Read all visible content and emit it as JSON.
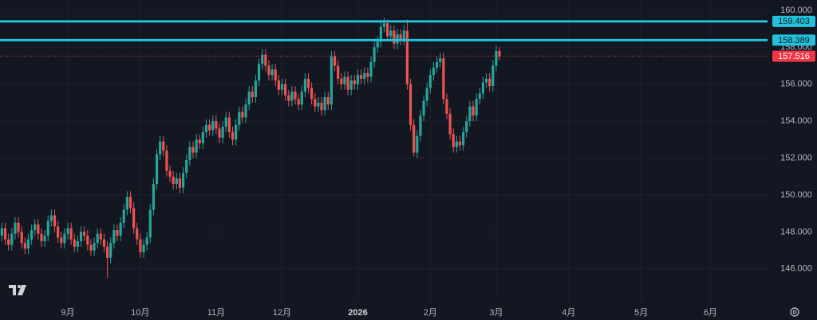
{
  "chart_data": {
    "type": "candlestick",
    "up_color": "#26a69a",
    "down_color": "#ef5350",
    "grid": true,
    "ylim": [
      144.18,
      160.56
    ],
    "yticks": [
      {
        "value": 146,
        "label": "146.000"
      },
      {
        "value": 148,
        "label": "148.000"
      },
      {
        "value": 150,
        "label": "150.000"
      },
      {
        "value": 152,
        "label": "152.000"
      },
      {
        "value": 154,
        "label": "154.000"
      },
      {
        "value": 156,
        "label": "156.000"
      },
      {
        "value": 158,
        "label": "158.000"
      },
      {
        "value": 160,
        "label": "160.000"
      }
    ],
    "levels": [
      {
        "value": 159.403,
        "color": "#22c3da"
      },
      {
        "value": 158.389,
        "color": "#22c3da"
      }
    ],
    "last_price_color": "#f23645",
    "categories": [
      null,
      null,
      null,
      null,
      null,
      null,
      null,
      null,
      null,
      null,
      null,
      null,
      null,
      null,
      null,
      null,
      null,
      null,
      null,
      null,
      null,
      "9月",
      null,
      null,
      null,
      null,
      null,
      null,
      null,
      null,
      null,
      null,
      null,
      null,
      null,
      null,
      null,
      null,
      null,
      null,
      null,
      null,
      null,
      "10月",
      null,
      null,
      null,
      null,
      null,
      null,
      null,
      null,
      null,
      null,
      null,
      null,
      null,
      null,
      null,
      null,
      null,
      null,
      null,
      null,
      null,
      null,
      "11月",
      null,
      null,
      null,
      null,
      null,
      null,
      null,
      null,
      null,
      null,
      null,
      null,
      null,
      null,
      null,
      null,
      null,
      null,
      null,
      "12月",
      null,
      null,
      null,
      null,
      null,
      null,
      null,
      null,
      null,
      null,
      null,
      null,
      null,
      null,
      null,
      null,
      null,
      null,
      null,
      null,
      null,
      null,
      "2026",
      null,
      null,
      null,
      null,
      null,
      null,
      null,
      null,
      null,
      null,
      null,
      null,
      null,
      null,
      null,
      null,
      null,
      null,
      null,
      null,
      null,
      "2月",
      null,
      null,
      null,
      null,
      null,
      null,
      null,
      null,
      null,
      null,
      null,
      null,
      null,
      null,
      null,
      null,
      null,
      null,
      null,
      "3月",
      null,
      null,
      null,
      null,
      null,
      null,
      null,
      null,
      null,
      null,
      null,
      null,
      null,
      null,
      null,
      null,
      null,
      null,
      null,
      null,
      null,
      "4月",
      null,
      null,
      null,
      null,
      null,
      null,
      null,
      null,
      null,
      null,
      null,
      null,
      null,
      null,
      null,
      null,
      null,
      null,
      null,
      null,
      null,
      "5月",
      null,
      null,
      null,
      null,
      null,
      null,
      null,
      null,
      null,
      null,
      null,
      null,
      null,
      null,
      null,
      null,
      null,
      null,
      null,
      null,
      "6月",
      null,
      null,
      null,
      null,
      null,
      null,
      null,
      null,
      null,
      null,
      null,
      null,
      null,
      null,
      null,
      null,
      null,
      null,
      null,
      null,
      null
    ],
    "values": [
      [
        147.5,
        148.1,
        147.2,
        147.8
      ],
      [
        147.8,
        148.5,
        147.5,
        148.2
      ],
      [
        148.2,
        148.5,
        147.3,
        147.6
      ],
      [
        147.6,
        147.9,
        147.0,
        147.3
      ],
      [
        147.3,
        148.2,
        147.0,
        147.9
      ],
      [
        147.9,
        148.8,
        147.6,
        148.5
      ],
      [
        148.5,
        148.8,
        147.7,
        148.0
      ],
      [
        148.0,
        148.3,
        147.1,
        147.4
      ],
      [
        147.4,
        147.7,
        146.8,
        147.1
      ],
      [
        147.1,
        147.9,
        146.8,
        147.6
      ],
      [
        147.6,
        148.4,
        147.3,
        148.1
      ],
      [
        148.1,
        148.7,
        147.8,
        148.4
      ],
      [
        148.4,
        148.7,
        147.6,
        147.9
      ],
      [
        147.9,
        148.2,
        147.2,
        147.5
      ],
      [
        147.5,
        148.1,
        147.2,
        147.8
      ],
      [
        147.8,
        148.9,
        147.5,
        148.6
      ],
      [
        148.6,
        149.2,
        148.3,
        148.9
      ],
      [
        148.9,
        149.2,
        148.0,
        148.3
      ],
      [
        148.3,
        148.6,
        147.4,
        147.7
      ],
      [
        147.7,
        148.0,
        147.1,
        147.4
      ],
      [
        147.4,
        148.2,
        147.1,
        147.9
      ],
      [
        147.9,
        148.5,
        147.6,
        148.2
      ],
      [
        148.2,
        148.5,
        147.3,
        147.6
      ],
      [
        147.6,
        147.9,
        146.9,
        147.2
      ],
      [
        147.2,
        147.8,
        146.9,
        147.5
      ],
      [
        147.5,
        148.3,
        147.2,
        148.0
      ],
      [
        148.0,
        148.3,
        147.5,
        147.8
      ],
      [
        147.8,
        148.1,
        147.0,
        147.3
      ],
      [
        147.3,
        147.6,
        146.7,
        147.0
      ],
      [
        147.0,
        147.7,
        146.7,
        147.4
      ],
      [
        147.4,
        148.2,
        147.1,
        147.9
      ],
      [
        147.9,
        148.2,
        147.3,
        147.6
      ],
      [
        147.6,
        147.9,
        146.9,
        147.2
      ],
      [
        147.2,
        147.5,
        145.5,
        146.6
      ],
      [
        146.6,
        147.7,
        146.3,
        147.4
      ],
      [
        147.4,
        148.4,
        147.1,
        148.1
      ],
      [
        148.1,
        148.4,
        147.5,
        147.8
      ],
      [
        147.8,
        148.8,
        147.5,
        148.5
      ],
      [
        148.5,
        149.5,
        148.2,
        149.2
      ],
      [
        149.2,
        150.2,
        148.9,
        149.9
      ],
      [
        149.9,
        150.2,
        149.0,
        149.3
      ],
      [
        149.3,
        149.6,
        147.9,
        148.2
      ],
      [
        148.2,
        148.5,
        147.3,
        147.6
      ],
      [
        147.6,
        147.9,
        146.6,
        146.9
      ],
      [
        146.9,
        147.6,
        146.6,
        147.3
      ],
      [
        147.3,
        148.0,
        147.0,
        147.7
      ],
      [
        147.7,
        149.5,
        147.4,
        149.2
      ],
      [
        149.2,
        150.9,
        148.9,
        150.6
      ],
      [
        150.6,
        152.5,
        150.3,
        152.2
      ],
      [
        152.2,
        153.2,
        151.9,
        152.9
      ],
      [
        152.9,
        153.2,
        152.1,
        152.4
      ],
      [
        152.4,
        152.7,
        151.0,
        151.3
      ],
      [
        151.3,
        151.6,
        150.7,
        151.0
      ],
      [
        151.0,
        151.3,
        150.3,
        150.6
      ],
      [
        150.6,
        151.2,
        150.3,
        150.9
      ],
      [
        150.9,
        151.2,
        150.1,
        150.4
      ],
      [
        150.4,
        151.5,
        150.1,
        151.2
      ],
      [
        151.2,
        152.2,
        150.9,
        151.9
      ],
      [
        151.9,
        152.9,
        151.6,
        152.6
      ],
      [
        152.6,
        152.9,
        152.0,
        152.3
      ],
      [
        152.3,
        153.3,
        152.0,
        153.0
      ],
      [
        153.0,
        153.3,
        152.5,
        152.8
      ],
      [
        152.8,
        153.7,
        152.5,
        153.4
      ],
      [
        153.4,
        154.1,
        153.1,
        153.8
      ],
      [
        153.8,
        154.1,
        153.2,
        153.5
      ],
      [
        153.5,
        154.3,
        153.2,
        154.0
      ],
      [
        154.0,
        154.3,
        153.3,
        153.6
      ],
      [
        153.6,
        153.9,
        152.8,
        153.1
      ],
      [
        153.1,
        154.0,
        152.8,
        153.7
      ],
      [
        153.7,
        154.5,
        153.4,
        154.2
      ],
      [
        154.2,
        154.5,
        153.1,
        153.4
      ],
      [
        153.4,
        153.7,
        152.7,
        153.0
      ],
      [
        153.0,
        154.1,
        152.7,
        153.8
      ],
      [
        153.8,
        154.8,
        153.5,
        154.5
      ],
      [
        154.5,
        154.8,
        153.9,
        154.2
      ],
      [
        154.2,
        155.2,
        153.9,
        154.9
      ],
      [
        154.9,
        155.9,
        154.6,
        155.6
      ],
      [
        155.6,
        155.9,
        155.0,
        155.3
      ],
      [
        155.3,
        156.5,
        155.0,
        156.2
      ],
      [
        156.2,
        157.4,
        155.9,
        157.1
      ],
      [
        157.1,
        157.9,
        156.8,
        157.6
      ],
      [
        157.6,
        157.9,
        156.7,
        157.0
      ],
      [
        157.0,
        157.3,
        156.2,
        156.5
      ],
      [
        156.5,
        157.1,
        156.2,
        156.8
      ],
      [
        156.8,
        157.1,
        155.9,
        156.2
      ],
      [
        156.2,
        156.5,
        155.4,
        155.7
      ],
      [
        155.7,
        156.3,
        155.4,
        156.0
      ],
      [
        156.0,
        156.3,
        155.1,
        155.4
      ],
      [
        155.4,
        155.7,
        154.8,
        155.1
      ],
      [
        155.1,
        155.9,
        154.8,
        155.6
      ],
      [
        155.6,
        155.9,
        154.9,
        155.2
      ],
      [
        155.2,
        155.5,
        154.6,
        154.9
      ],
      [
        154.9,
        155.9,
        154.6,
        155.6
      ],
      [
        155.6,
        156.6,
        155.3,
        156.3
      ],
      [
        156.3,
        156.6,
        155.5,
        155.8
      ],
      [
        155.8,
        156.1,
        154.9,
        155.2
      ],
      [
        155.2,
        155.5,
        154.5,
        154.8
      ],
      [
        154.8,
        155.3,
        154.5,
        155.0
      ],
      [
        155.0,
        155.3,
        154.3,
        154.6
      ],
      [
        154.6,
        155.6,
        154.3,
        155.3
      ],
      [
        155.3,
        155.6,
        154.6,
        154.9
      ],
      [
        154.9,
        157.8,
        154.6,
        157.5
      ],
      [
        157.5,
        157.8,
        156.7,
        157.0
      ],
      [
        157.0,
        157.3,
        156.0,
        156.3
      ],
      [
        156.3,
        156.6,
        155.7,
        156.0
      ],
      [
        156.0,
        156.7,
        155.7,
        156.4
      ],
      [
        156.4,
        156.7,
        155.4,
        155.7
      ],
      [
        155.7,
        156.5,
        155.4,
        156.2
      ],
      [
        156.2,
        156.5,
        155.7,
        156.0
      ],
      [
        156.0,
        156.8,
        155.7,
        156.5
      ],
      [
        156.5,
        156.8,
        156.0,
        156.3
      ],
      [
        156.3,
        156.9,
        156.0,
        156.6
      ],
      [
        156.6,
        156.9,
        156.1,
        156.4
      ],
      [
        156.4,
        157.5,
        156.1,
        157.2
      ],
      [
        157.2,
        158.3,
        156.9,
        158.0
      ],
      [
        158.0,
        158.6,
        157.7,
        158.3
      ],
      [
        158.3,
        159.4,
        158.0,
        159.1
      ],
      [
        159.1,
        159.6,
        158.8,
        159.3
      ],
      [
        159.3,
        159.5,
        158.3,
        158.6
      ],
      [
        158.6,
        159.2,
        158.3,
        158.9
      ],
      [
        158.9,
        159.2,
        157.9,
        158.2
      ],
      [
        158.2,
        159.0,
        157.9,
        158.7
      ],
      [
        158.7,
        159.0,
        158.1,
        158.4
      ],
      [
        158.4,
        159.2,
        158.1,
        158.9
      ],
      [
        158.9,
        159.5,
        155.7,
        156.0
      ],
      [
        156.0,
        156.3,
        153.5,
        153.8
      ],
      [
        153.8,
        154.1,
        152.1,
        152.3
      ],
      [
        152.3,
        153.5,
        152.0,
        153.2
      ],
      [
        153.2,
        154.6,
        152.9,
        154.3
      ],
      [
        154.3,
        155.4,
        154.0,
        155.1
      ],
      [
        155.1,
        156.1,
        154.8,
        155.8
      ],
      [
        155.8,
        156.8,
        155.5,
        156.5
      ],
      [
        156.5,
        157.2,
        156.2,
        156.9
      ],
      [
        156.9,
        157.5,
        156.6,
        157.2
      ],
      [
        157.2,
        157.7,
        156.9,
        157.4
      ],
      [
        157.4,
        157.7,
        154.9,
        155.2
      ],
      [
        155.2,
        155.5,
        154.1,
        154.4
      ],
      [
        154.4,
        154.7,
        153.0,
        153.3
      ],
      [
        153.3,
        153.6,
        152.3,
        152.6
      ],
      [
        152.6,
        153.2,
        152.3,
        152.9
      ],
      [
        152.9,
        153.2,
        152.4,
        152.7
      ],
      [
        152.7,
        153.7,
        152.4,
        153.4
      ],
      [
        153.4,
        154.3,
        153.1,
        154.0
      ],
      [
        154.0,
        155.1,
        153.7,
        154.8
      ],
      [
        154.8,
        155.1,
        154.0,
        154.3
      ],
      [
        154.3,
        155.5,
        154.0,
        155.2
      ],
      [
        155.2,
        155.8,
        154.9,
        155.5
      ],
      [
        155.5,
        156.4,
        155.2,
        156.1
      ],
      [
        156.1,
        156.6,
        155.8,
        156.3
      ],
      [
        156.3,
        156.6,
        155.6,
        155.9
      ],
      [
        155.9,
        157.3,
        155.6,
        157.0
      ],
      [
        157.0,
        158.1,
        156.7,
        157.8
      ],
      [
        157.8,
        158.0,
        157.3,
        157.516
      ],
      null,
      null,
      null,
      null,
      null,
      null,
      null,
      null,
      null,
      null,
      null,
      null,
      null,
      null,
      null,
      null,
      null,
      null,
      null,
      null,
      null,
      null,
      null,
      null,
      null,
      null,
      null,
      null,
      null,
      null,
      null,
      null,
      null,
      null,
      null,
      null,
      null,
      null,
      null,
      null,
      null,
      null,
      null,
      null,
      null,
      null,
      null,
      null,
      null,
      null,
      null,
      null,
      null,
      null,
      null,
      null,
      null,
      null,
      null,
      null,
      null,
      null,
      null,
      null,
      null,
      null,
      null,
      null,
      null,
      null,
      null,
      null,
      null,
      null,
      null,
      null,
      null,
      null,
      null,
      null,
      null,
      null,
      null,
      null,
      null
    ]
  }
}
